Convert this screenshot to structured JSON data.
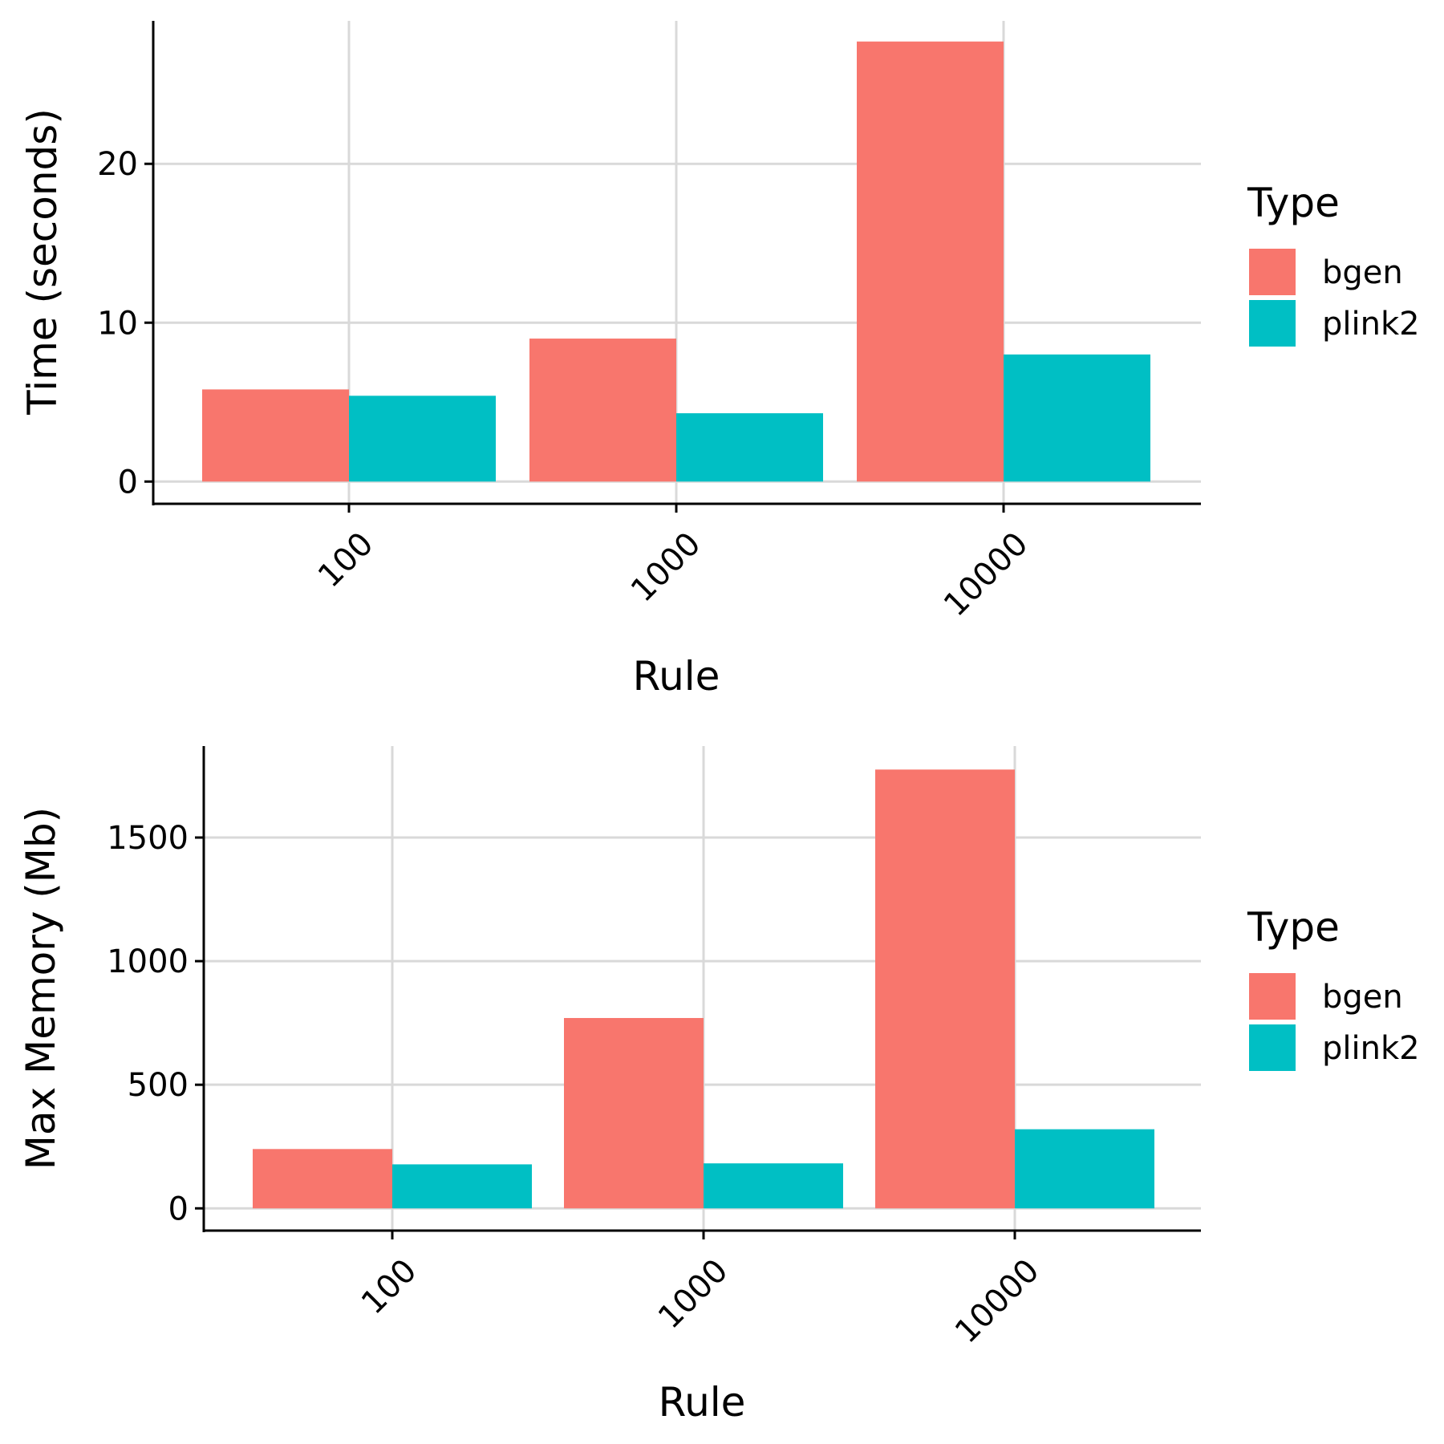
{
  "chart_data": [
    {
      "type": "bar",
      "xlabel": "Rule",
      "ylabel": "Time (seconds)",
      "categories": [
        "100",
        "1000",
        "10000"
      ],
      "yticks": [
        "0",
        "10",
        "20"
      ],
      "ylim": [
        -1.4,
        29
      ],
      "grid": true,
      "legend": {
        "title": "Type",
        "position": "right"
      },
      "series": [
        {
          "name": "bgen",
          "color": "#F8766D",
          "values": [
            5.8,
            9.0,
            27.7
          ]
        },
        {
          "name": "plink2",
          "color": "#00BFC4",
          "values": [
            5.4,
            4.3,
            8.0
          ]
        }
      ]
    },
    {
      "type": "bar",
      "xlabel": "Rule",
      "ylabel": "Max Memory (Mb)",
      "categories": [
        "100",
        "1000",
        "10000"
      ],
      "yticks": [
        "0",
        "500",
        "1000",
        "1500"
      ],
      "ylim": [
        -90,
        1870
      ],
      "grid": true,
      "legend": {
        "title": "Type",
        "position": "right"
      },
      "series": [
        {
          "name": "bgen",
          "color": "#F8766D",
          "values": [
            240,
            770,
            1775
          ]
        },
        {
          "name": "plink2",
          "color": "#00BFC4",
          "values": [
            178,
            182,
            320
          ]
        }
      ]
    }
  ]
}
